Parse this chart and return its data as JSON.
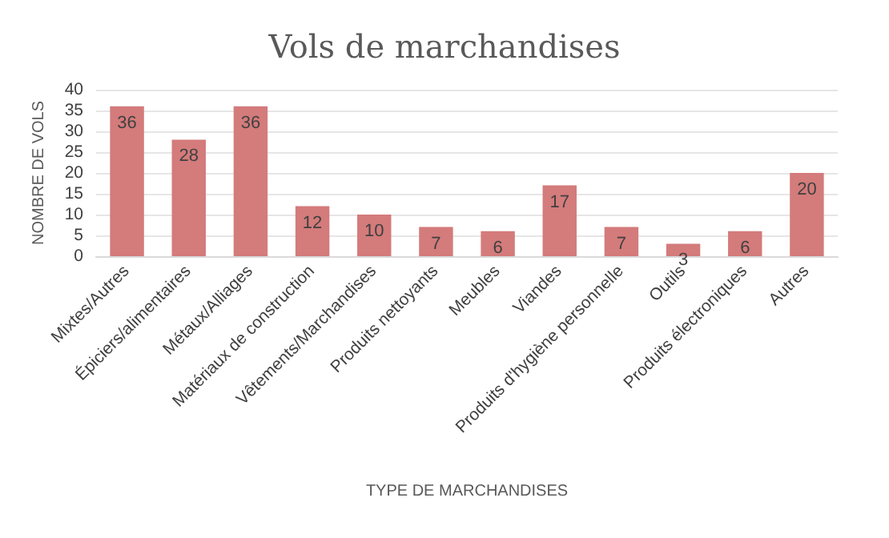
{
  "chart_data": {
    "type": "bar",
    "title": "Vols de marchandises",
    "xlabel": "TYPE DE MARCHANDISES",
    "ylabel": "NOMBRE DE VOLS",
    "categories": [
      "Mixtes/Autres",
      "Épiciers/alimentaires",
      "Métaux/Alliages",
      "Matériaux de construction",
      "Vêtements/Marchandises",
      "Produits nettoyants",
      "Meubles",
      "Viandes",
      "Produits d'hygiène personnelle",
      "Outils",
      "Produits électroniques",
      "Autres"
    ],
    "values": [
      36,
      28,
      36,
      12,
      10,
      7,
      6,
      17,
      7,
      3,
      6,
      20
    ],
    "color": "#d47b7b",
    "ylim": [
      0,
      40
    ],
    "yticks": [
      0,
      5,
      10,
      15,
      20,
      25,
      30,
      35,
      40
    ],
    "grid": "y",
    "data_labels": true
  }
}
